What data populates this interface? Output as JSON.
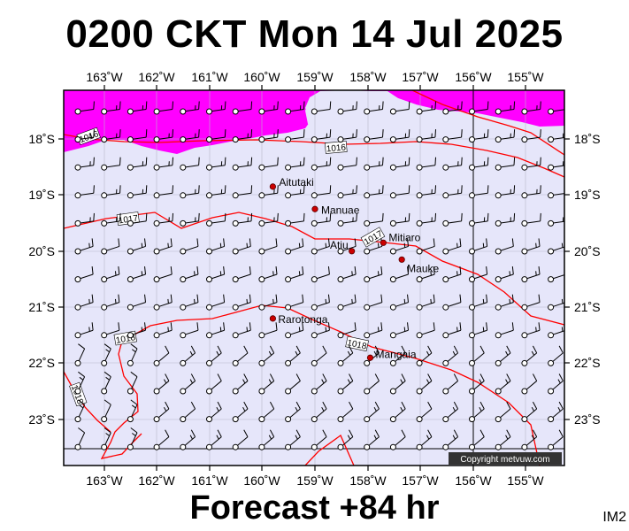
{
  "header": {
    "title": "0200 CKT Mon 14 Jul 2025"
  },
  "footer": {
    "forecast": "Forecast +84 hr",
    "product_code": "IM2"
  },
  "copyright": "Copyright metvuw.com",
  "colors": {
    "ocean": "#e6e6fa",
    "rain_heavy": "#ff00ff",
    "isobar": "#ff0000",
    "station": "#cc0000",
    "wind_barb": "#000000"
  },
  "map": {
    "lon_labels": [
      "163˚W",
      "162˚W",
      "161˚W",
      "160˚W",
      "159˚W",
      "158˚W",
      "157˚W",
      "156˚W",
      "155˚W"
    ],
    "lat_labels": [
      "18˚S",
      "19˚S",
      "20˚S",
      "21˚S",
      "22˚S",
      "23˚S"
    ],
    "islands": [
      {
        "name": "Aitutaki",
        "lon": -159.8,
        "lat": -18.85
      },
      {
        "name": "Manuae",
        "lon": -159.0,
        "lat": -19.25
      },
      {
        "name": "Atiu",
        "lon": -158.3,
        "lat": -20.0
      },
      {
        "name": "Mitiaro",
        "lon": -157.7,
        "lat": -19.85
      },
      {
        "name": "Mauke",
        "lon": -157.35,
        "lat": -20.15
      },
      {
        "name": "Rarotonga",
        "lon": -159.8,
        "lat": -21.2
      },
      {
        "name": "Mangaia",
        "lon": -157.95,
        "lat": -21.9
      }
    ],
    "isobars": [
      {
        "label": "1016",
        "label_lon": -163.3,
        "label_lat": -17.95
      },
      {
        "label": "1016",
        "label_lon": -158.6,
        "label_lat": -18.15
      },
      {
        "label": "1017",
        "label_lon": -162.55,
        "label_lat": -19.42
      },
      {
        "label": "1017",
        "label_lon": -157.9,
        "label_lat": -19.75
      },
      {
        "label": "1018",
        "label_lon": -162.6,
        "label_lat": -21.55
      },
      {
        "label": "1018",
        "label_lon": -158.2,
        "label_lat": -21.65
      },
      {
        "label": "1018",
        "label_lon": -163.5,
        "label_lat": -22.55
      }
    ]
  }
}
